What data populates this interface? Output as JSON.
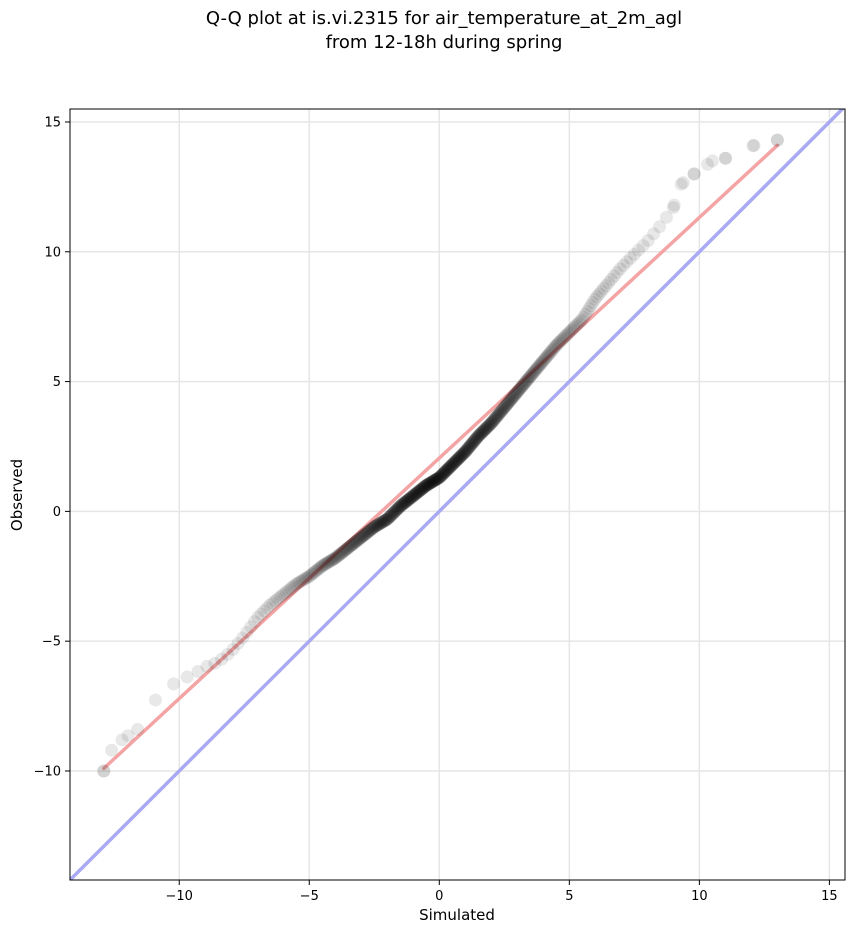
{
  "chart_data": {
    "type": "scatter",
    "title_line1": "Q-Q plot at is.vi.2315 for air_temperature_at_2m_agl",
    "title_line2": "from 12-18h during spring",
    "xlabel": "Simulated",
    "ylabel": "Observed",
    "xlim": [
      -14.2,
      15.6
    ],
    "ylim": [
      -14.2,
      15.5
    ],
    "xticks": [
      -10,
      -5,
      0,
      5,
      10,
      15
    ],
    "yticks": [
      -10,
      -5,
      0,
      5,
      10,
      15
    ],
    "xtick_labels": [
      "−10",
      "−5",
      "0",
      "5",
      "10",
      "15"
    ],
    "ytick_labels": [
      "−10",
      "−5",
      "0",
      "5",
      "10",
      "15"
    ],
    "grid": true,
    "fit_line": {
      "x": [
        -12.9,
        13.0
      ],
      "y": [
        -9.9,
        14.1
      ],
      "color": "#f4a4a4"
    },
    "identity_line": {
      "x": [
        -14.2,
        15.6
      ],
      "y": [
        -14.2,
        15.6
      ],
      "color": "#a9a9f4"
    },
    "point_color": "#000000",
    "quantile_curve": [
      [
        -12.9,
        -10.0
      ],
      [
        -12.6,
        -9.2
      ],
      [
        -12.2,
        -8.8
      ],
      [
        -11.6,
        -8.4
      ],
      [
        -11.2,
        -7.6
      ],
      [
        -10.6,
        -6.9
      ],
      [
        -10.0,
        -6.5
      ],
      [
        -9.5,
        -6.3
      ],
      [
        -9.0,
        -6.0
      ],
      [
        -8.5,
        -5.8
      ],
      [
        -8.0,
        -5.4
      ],
      [
        -7.5,
        -4.8
      ],
      [
        -7.0,
        -4.1
      ],
      [
        -6.5,
        -3.6
      ],
      [
        -6.0,
        -3.2
      ],
      [
        -5.5,
        -2.8
      ],
      [
        -5.0,
        -2.5
      ],
      [
        -4.5,
        -2.1
      ],
      [
        -4.0,
        -1.8
      ],
      [
        -3.5,
        -1.4
      ],
      [
        -3.0,
        -1.0
      ],
      [
        -2.5,
        -0.6
      ],
      [
        -2.0,
        -0.3
      ],
      [
        -1.5,
        0.2
      ],
      [
        -1.0,
        0.6
      ],
      [
        -0.5,
        1.0
      ],
      [
        0.0,
        1.3
      ],
      [
        0.5,
        1.8
      ],
      [
        1.0,
        2.3
      ],
      [
        1.5,
        2.9
      ],
      [
        2.0,
        3.4
      ],
      [
        2.5,
        4.0
      ],
      [
        3.0,
        4.6
      ],
      [
        3.5,
        5.2
      ],
      [
        4.0,
        5.8
      ],
      [
        4.5,
        6.4
      ],
      [
        5.0,
        6.9
      ],
      [
        5.5,
        7.4
      ],
      [
        6.0,
        8.2
      ],
      [
        6.5,
        8.8
      ],
      [
        7.0,
        9.4
      ],
      [
        7.5,
        9.9
      ],
      [
        8.0,
        10.4
      ],
      [
        8.5,
        11.0
      ],
      [
        9.0,
        11.7
      ],
      [
        9.3,
        12.6
      ],
      [
        9.8,
        13.0
      ],
      [
        10.5,
        13.5
      ],
      [
        11.0,
        13.6
      ],
      [
        12.1,
        14.1
      ],
      [
        13.0,
        14.3
      ]
    ],
    "point_count": 520
  }
}
